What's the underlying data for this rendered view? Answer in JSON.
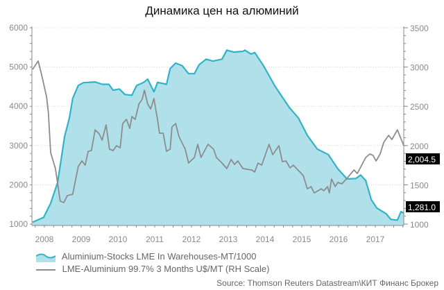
{
  "chart_data": {
    "type": "area+line",
    "title": "Динамика цен на алюминий",
    "x_ticks": [
      "2008",
      "2009",
      "2010",
      "2011",
      "2012",
      "2013",
      "2014",
      "2015",
      "2016",
      "2017"
    ],
    "xlim": [
      2007.66,
      2017.78
    ],
    "left_axis": {
      "ylim": [
        1000,
        6000
      ],
      "ticks": [
        "1000",
        "2000",
        "3000",
        "4000",
        "5000",
        "6000"
      ]
    },
    "right_axis": {
      "ylim": [
        1000,
        3500
      ],
      "ticks": [
        "1000",
        "1500",
        "2000",
        "2500",
        "3000",
        "3500"
      ]
    },
    "grid": true,
    "legend_placement": "bottom-left",
    "series": [
      {
        "name": "Aluminium-Stocks LME In Warehouses-MT/1000",
        "type": "area",
        "axis": "left",
        "color": "#2fb3c6",
        "fill": "#b0e1ea",
        "last_value_label": "1,281.0",
        "points": [
          [
            2007.68,
            1050
          ],
          [
            2007.98,
            1170
          ],
          [
            2008.17,
            1530
          ],
          [
            2008.36,
            2060
          ],
          [
            2008.55,
            3230
          ],
          [
            2008.68,
            3700
          ],
          [
            2008.77,
            4200
          ],
          [
            2008.92,
            4530
          ],
          [
            2009.06,
            4600
          ],
          [
            2009.38,
            4620
          ],
          [
            2009.57,
            4560
          ],
          [
            2009.75,
            4560
          ],
          [
            2009.87,
            4410
          ],
          [
            2010.04,
            4440
          ],
          [
            2010.19,
            4300
          ],
          [
            2010.38,
            4280
          ],
          [
            2010.51,
            4530
          ],
          [
            2010.7,
            4610
          ],
          [
            2010.81,
            4690
          ],
          [
            2010.98,
            4370
          ],
          [
            2011.08,
            4610
          ],
          [
            2011.32,
            4560
          ],
          [
            2011.42,
            4960
          ],
          [
            2011.57,
            5100
          ],
          [
            2011.75,
            5030
          ],
          [
            2011.92,
            4830
          ],
          [
            2012.08,
            4830
          ],
          [
            2012.21,
            5060
          ],
          [
            2012.4,
            5200
          ],
          [
            2012.58,
            5150
          ],
          [
            2012.83,
            5200
          ],
          [
            2012.96,
            5430
          ],
          [
            2013.15,
            5380
          ],
          [
            2013.4,
            5400
          ],
          [
            2013.45,
            5430
          ],
          [
            2013.62,
            5330
          ],
          [
            2013.72,
            5370
          ],
          [
            2013.96,
            5030
          ],
          [
            2014.28,
            4500
          ],
          [
            2014.66,
            3970
          ],
          [
            2014.91,
            3700
          ],
          [
            2015.15,
            3260
          ],
          [
            2015.42,
            2910
          ],
          [
            2015.72,
            2770
          ],
          [
            2015.98,
            2410
          ],
          [
            2016.23,
            2150
          ],
          [
            2016.47,
            2160
          ],
          [
            2016.6,
            2250
          ],
          [
            2016.74,
            2110
          ],
          [
            2016.89,
            1620
          ],
          [
            2017.04,
            1410
          ],
          [
            2017.3,
            1260
          ],
          [
            2017.42,
            1120
          ],
          [
            2017.6,
            1100
          ],
          [
            2017.7,
            1320
          ],
          [
            2017.77,
            1281
          ]
        ]
      },
      {
        "name": "LME-Aluminium 99.7% 3 Months U$/MT (RH Scale)",
        "type": "line",
        "axis": "right",
        "color": "#8c8c8c",
        "last_value_label": "2,004.5",
        "points": [
          [
            2007.68,
            2970
          ],
          [
            2007.83,
            3076
          ],
          [
            2007.92,
            2908
          ],
          [
            2008.06,
            2617
          ],
          [
            2008.11,
            2413
          ],
          [
            2008.17,
            1910
          ],
          [
            2008.3,
            1707
          ],
          [
            2008.43,
            1292
          ],
          [
            2008.53,
            1274
          ],
          [
            2008.62,
            1362
          ],
          [
            2008.77,
            1380
          ],
          [
            2008.92,
            1733
          ],
          [
            2009.02,
            1804
          ],
          [
            2009.11,
            1750
          ],
          [
            2009.19,
            1927
          ],
          [
            2009.28,
            1936
          ],
          [
            2009.38,
            2200
          ],
          [
            2009.49,
            2148
          ],
          [
            2009.57,
            2069
          ],
          [
            2009.68,
            2263
          ],
          [
            2009.77,
            1954
          ],
          [
            2009.87,
            1936
          ],
          [
            2009.96,
            1998
          ],
          [
            2010.06,
            1971
          ],
          [
            2010.13,
            2281
          ],
          [
            2010.23,
            2334
          ],
          [
            2010.32,
            2219
          ],
          [
            2010.38,
            2369
          ],
          [
            2010.47,
            2334
          ],
          [
            2010.57,
            2528
          ],
          [
            2010.66,
            2590
          ],
          [
            2010.72,
            2705
          ],
          [
            2010.81,
            2528
          ],
          [
            2010.89,
            2466
          ],
          [
            2010.98,
            2599
          ],
          [
            2011.08,
            2325
          ],
          [
            2011.13,
            2157
          ],
          [
            2011.23,
            2157
          ],
          [
            2011.32,
            1927
          ],
          [
            2011.42,
            1954
          ],
          [
            2011.47,
            2237
          ],
          [
            2011.57,
            2281
          ],
          [
            2011.66,
            2113
          ],
          [
            2011.83,
            1954
          ],
          [
            2011.92,
            1777
          ],
          [
            2012.08,
            1848
          ],
          [
            2012.17,
            2016
          ],
          [
            2012.26,
            1848
          ],
          [
            2012.45,
            2016
          ],
          [
            2012.6,
            1954
          ],
          [
            2012.68,
            1848
          ],
          [
            2012.83,
            1777
          ],
          [
            2012.96,
            1707
          ],
          [
            2013.08,
            1822
          ],
          [
            2013.17,
            1760
          ],
          [
            2013.26,
            1804
          ],
          [
            2013.4,
            1707
          ],
          [
            2013.64,
            1689
          ],
          [
            2013.72,
            1663
          ],
          [
            2013.81,
            1777
          ],
          [
            2013.91,
            1750
          ],
          [
            2014.11,
            2016
          ],
          [
            2014.21,
            1883
          ],
          [
            2014.38,
            1998
          ],
          [
            2014.47,
            1795
          ],
          [
            2014.57,
            1804
          ],
          [
            2014.68,
            1716
          ],
          [
            2014.77,
            1750
          ],
          [
            2015.04,
            1618
          ],
          [
            2015.15,
            1450
          ],
          [
            2015.25,
            1477
          ],
          [
            2015.34,
            1397
          ],
          [
            2015.53,
            1450
          ],
          [
            2015.6,
            1424
          ],
          [
            2015.7,
            1477
          ],
          [
            2015.75,
            1397
          ],
          [
            2015.81,
            1574
          ],
          [
            2015.91,
            1477
          ],
          [
            2015.98,
            1530
          ],
          [
            2016.09,
            1512
          ],
          [
            2016.26,
            1601
          ],
          [
            2016.42,
            1689
          ],
          [
            2016.51,
            1645
          ],
          [
            2016.74,
            1848
          ],
          [
            2016.85,
            1892
          ],
          [
            2016.94,
            1874
          ],
          [
            2017.02,
            1804
          ],
          [
            2017.13,
            1892
          ],
          [
            2017.23,
            2042
          ],
          [
            2017.36,
            2130
          ],
          [
            2017.45,
            2077
          ],
          [
            2017.6,
            2200
          ],
          [
            2017.77,
            2004.5
          ]
        ]
      }
    ],
    "source": "Source: Thomson Reuters Datastream\\КИТ Финанс Брокер"
  }
}
